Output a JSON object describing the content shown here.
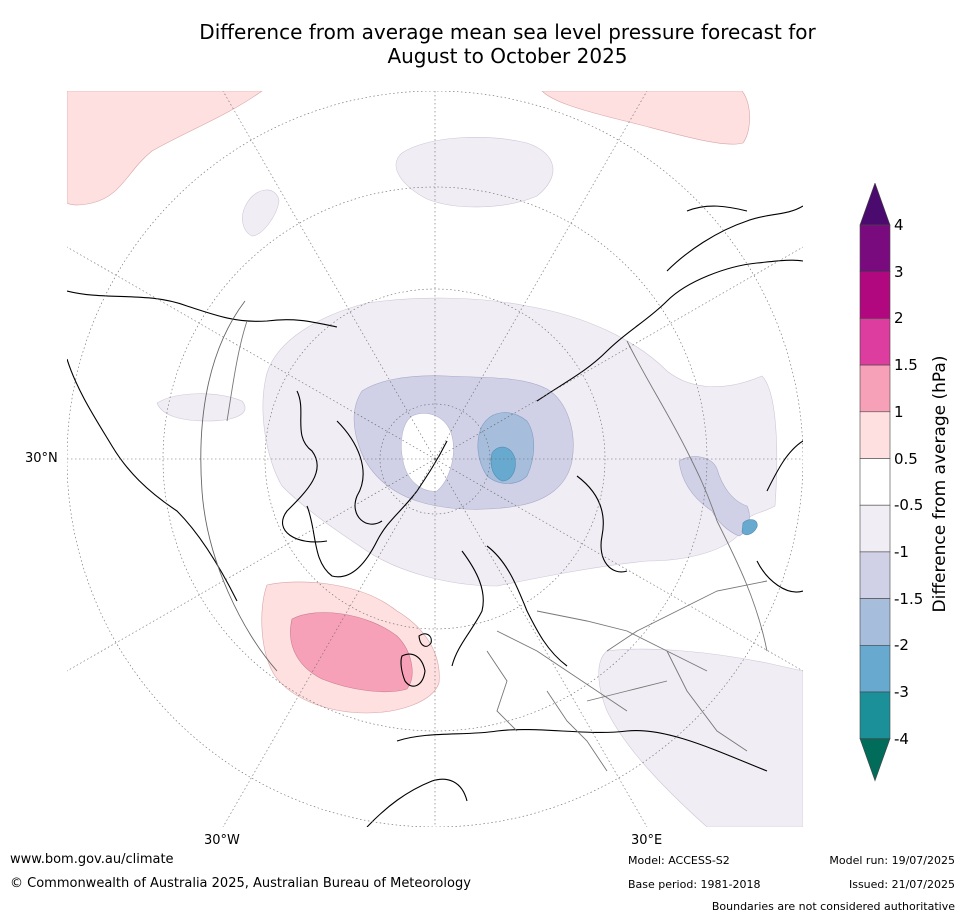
{
  "title_line1": "Difference from average mean sea level pressure forecast for",
  "title_line2": "August to October 2025",
  "map": {
    "projection": "north-polar-stereographic",
    "lon_labels": [
      "30°W",
      "30°E"
    ],
    "lat_label": "30°N"
  },
  "colorbar": {
    "title": "Difference from average (hPa)",
    "labels": [
      "4",
      "3",
      "2",
      "1.5",
      "1",
      "0.5",
      "-0.5",
      "-1",
      "-1.5",
      "-2",
      "-3",
      "-4"
    ],
    "colors": [
      "#4b0a6e",
      "#7a0b7f",
      "#b2087f",
      "#dd3d9e",
      "#f7a1b8",
      "#fde0df",
      "#ffffff",
      "#f1edf4",
      "#d0d1e6",
      "#a6bddb",
      "#67a9cf",
      "#1c9099",
      "#016c59"
    ]
  },
  "footer": {
    "website": "www.bom.gov.au/climate",
    "copyright": "© Commonwealth of Australia 2025, Australian Bureau of Meteorology",
    "model": "Model: ACCESS-S2",
    "base_period": "Base period: 1981-2018",
    "model_run": "Model run: 19/07/2025",
    "issued": "Issued: 21/07/2025",
    "disclaimer": "Boundaries are not considered authoritative"
  }
}
